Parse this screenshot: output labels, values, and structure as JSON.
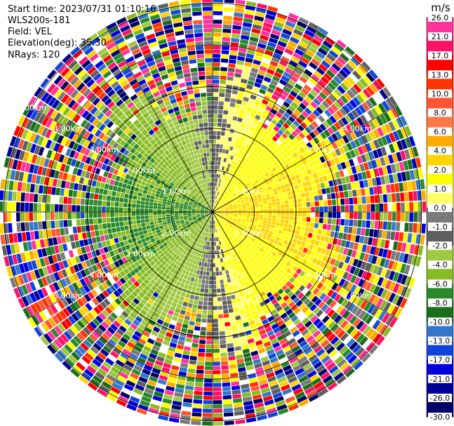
{
  "header": {
    "start_time": "Start time: 2023/07/31 01:10:16",
    "instrument": "WLS200s-181",
    "field": "Field: VEL",
    "elevation": "Elevation(deg): 35.30",
    "nrays": "NRays: 120"
  },
  "colorbar": {
    "unit": "m/s",
    "ticks": [
      "26.0",
      "21.0",
      "17.0",
      "13.0",
      "10.0",
      "8.0",
      "6.0",
      "4.0",
      "2.0",
      "1.0",
      "0.0",
      "-1.0",
      "-2.0",
      "-4.0",
      "-6.0",
      "-8.0",
      "-10.0",
      "-13.0",
      "-17.0",
      "-21.0",
      "-26.0",
      "-30.0"
    ],
    "colors": [
      "#ff3399",
      "#ff1166",
      "#ff0000",
      "#ff3300",
      "#ff5533",
      "#ff7744",
      "#ffaa00",
      "#ffd400",
      "#ffff00",
      "#ffff66",
      "#7a7a7a",
      "#5e5e5e",
      "#a0c840",
      "#88bb22",
      "#2a8a2a",
      "#1a6e1a",
      "#3377cc",
      "#1144dd",
      "#0000dd",
      "#000099",
      "#000066"
    ]
  },
  "chart_data": {
    "type": "heatmap",
    "projection": "polar (PPI)",
    "field": "VEL",
    "units": "m/s",
    "nrays": 120,
    "range_ring_labels": [
      "1.00km",
      "2.00km",
      "3.00km",
      "4.00km",
      "5.00km"
    ],
    "range_ring_labels_shown": [
      "1.00km",
      "1.00km",
      "2.00km",
      "2.00km",
      "2.00km",
      "3.00km",
      "3.00km",
      "3.00km",
      "4.00km",
      "4.00km",
      "4.00km",
      "4.00km",
      "5.00km",
      "5.00km",
      "5.00km"
    ],
    "velocity_regions": [
      {
        "sector": "north / northeast, inner rings",
        "approx_value_ms": 2.0
      },
      {
        "sector": "east / northeast, near center",
        "approx_value_ms": 5.0
      },
      {
        "sector": "south-east",
        "approx_value_ms": 2.0
      },
      {
        "sector": "west / south-west",
        "approx_value_ms": -5.0
      },
      {
        "sector": "north-west, inner",
        "approx_value_ms": 0.0
      },
      {
        "sector": "outer ranges (> ~3 km)",
        "approx_value_ms": "noisy / mixed"
      }
    ]
  }
}
